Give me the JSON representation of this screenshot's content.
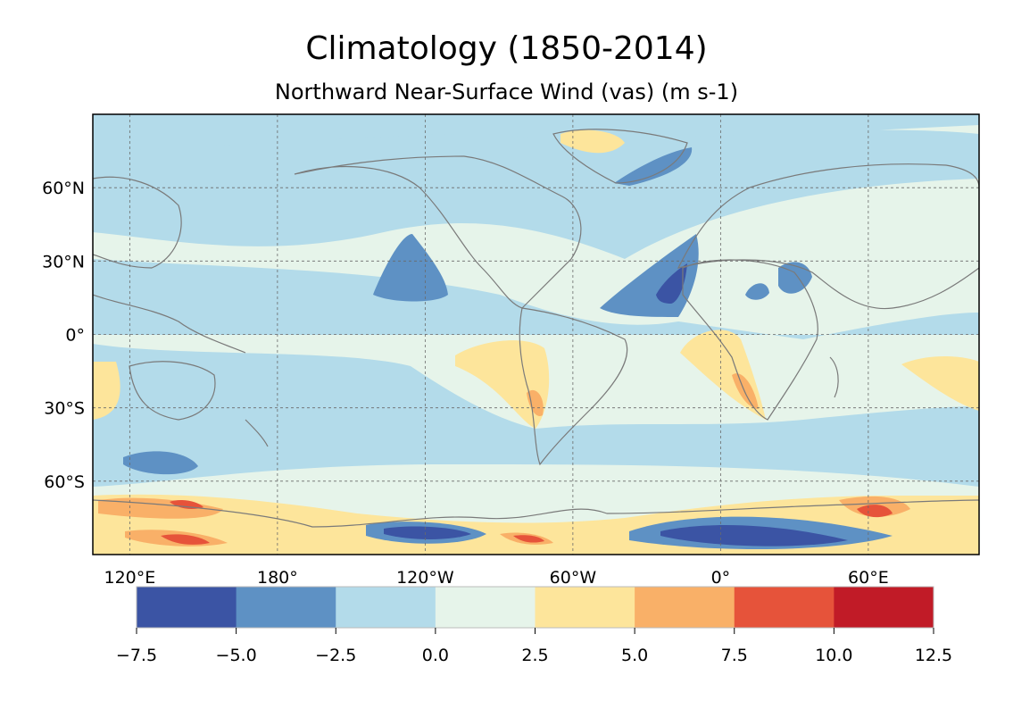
{
  "title": "Climatology (1850-2014)",
  "subtitle": "Northward Near-Surface Wind (vas) (m s-1)",
  "map": {
    "lat_labels": [
      "60°N",
      "30°N",
      "0°",
      "30°S",
      "60°S"
    ],
    "lat_values": [
      60,
      30,
      0,
      -30,
      -60
    ],
    "lon_labels": [
      "120°E",
      "180°",
      "120°W",
      "60°W",
      "0°",
      "60°E"
    ],
    "lon_values": [
      120,
      180,
      240,
      300,
      360,
      420
    ],
    "lon_range": [
      105,
      465
    ],
    "lat_range": [
      -90,
      90
    ]
  },
  "colorbar": {
    "ticks": [
      "−7.5",
      "−5.0",
      "−2.5",
      "0.0",
      "2.5",
      "5.0",
      "7.5",
      "10.0",
      "12.5"
    ],
    "levels": [
      -7.5,
      -5.0,
      -2.5,
      0.0,
      2.5,
      5.0,
      7.5,
      10.0,
      12.5
    ],
    "colors": [
      "#3b54a4",
      "#5e91c4",
      "#b3dbea",
      "#e6f4ea",
      "#fde59b",
      "#f9b068",
      "#e6533a",
      "#c11b27"
    ]
  }
}
